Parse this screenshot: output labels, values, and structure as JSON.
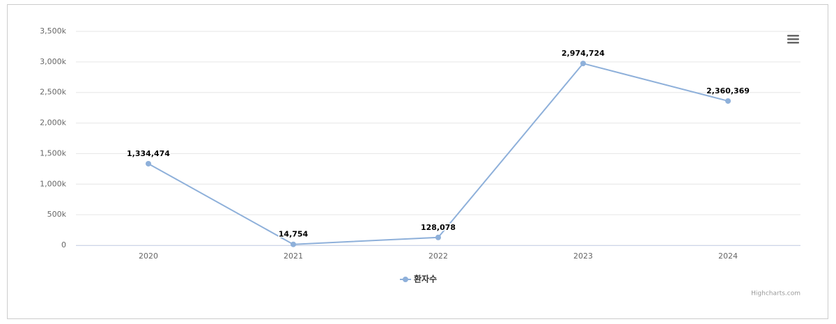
{
  "chart_data": {
    "type": "line",
    "categories": [
      "2020",
      "2021",
      "2022",
      "2023",
      "2024"
    ],
    "series": [
      {
        "name": "환자수",
        "color": "#8eb0da",
        "values": [
          1334474,
          14754,
          128078,
          2974724,
          2360369
        ],
        "value_labels": [
          "1,334,474",
          "14,754",
          "128,078",
          "2,974,724",
          "2,360,369"
        ]
      }
    ],
    "ylim": [
      0,
      3500000
    ],
    "yticks": [
      0,
      {
        "value": 500000,
        "label": "500k"
      },
      {
        "value": 1000000,
        "label": "1,000k"
      },
      {
        "value": 1500000,
        "label": "1,500k"
      },
      {
        "value": 2000000,
        "label": "2,000k"
      },
      {
        "value": 2500000,
        "label": "2,500k"
      },
      {
        "value": 3000000,
        "label": "3,000k"
      },
      {
        "value": 3500000,
        "label": "3,500k"
      }
    ],
    "grid": true,
    "legend": "bottom",
    "credit": "Highcharts.com"
  }
}
